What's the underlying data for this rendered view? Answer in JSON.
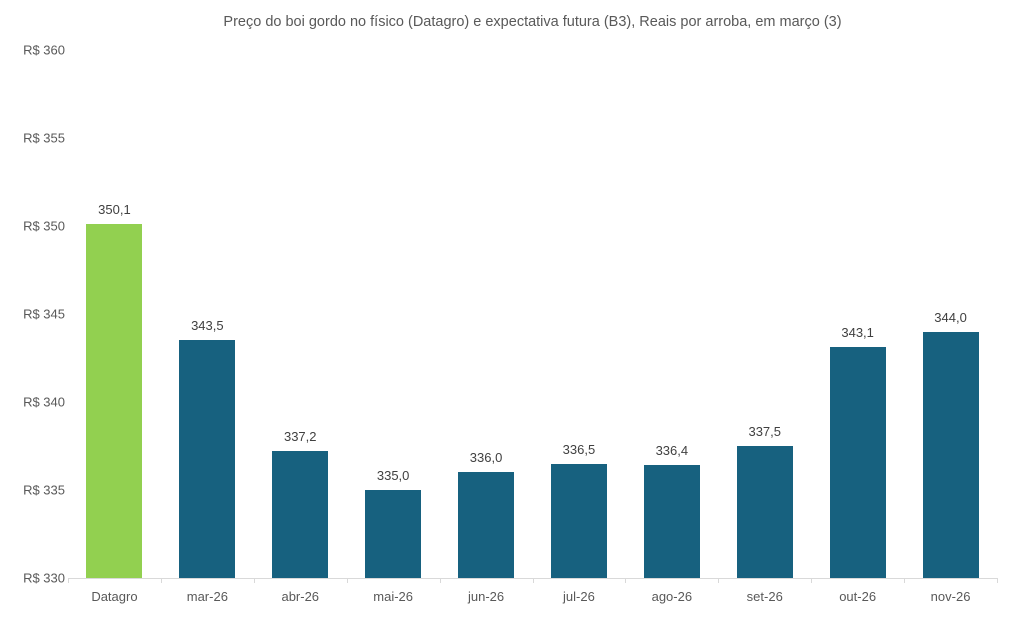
{
  "chart_data": {
    "type": "bar",
    "title": "Preço do boi gordo no físico (Datagro)  e expectativa futura (B3), Reais por arroba, em março (3)",
    "categories": [
      "Datagro",
      "mar-26",
      "abr-26",
      "mai-26",
      "jun-26",
      "jul-26",
      "ago-26",
      "set-26",
      "out-26",
      "nov-26"
    ],
    "values": [
      350.1,
      343.5,
      337.2,
      335.0,
      336.0,
      336.5,
      336.4,
      337.5,
      343.1,
      344.0
    ],
    "value_labels": [
      "350,1",
      "343,5",
      "337,2",
      "335,0",
      "336,0",
      "336,5",
      "336,4",
      "337,5",
      "343,1",
      "344,0"
    ],
    "xlabel": "",
    "ylabel": "",
    "ylim": [
      330,
      360
    ],
    "ytick_step": 5,
    "ytick_labels": [
      "R$ 330",
      "R$ 335",
      "R$ 340",
      "R$ 345",
      "R$ 350",
      "R$ 355",
      "R$ 360"
    ],
    "grid": false,
    "legend_position": "none",
    "highlight_index": 0,
    "colors": {
      "highlight_bar": "#92d050",
      "default_bar": "#17617f",
      "axis_line": "#d9d9d9",
      "value_label_text": "#404040",
      "axis_text": "#595959"
    }
  }
}
